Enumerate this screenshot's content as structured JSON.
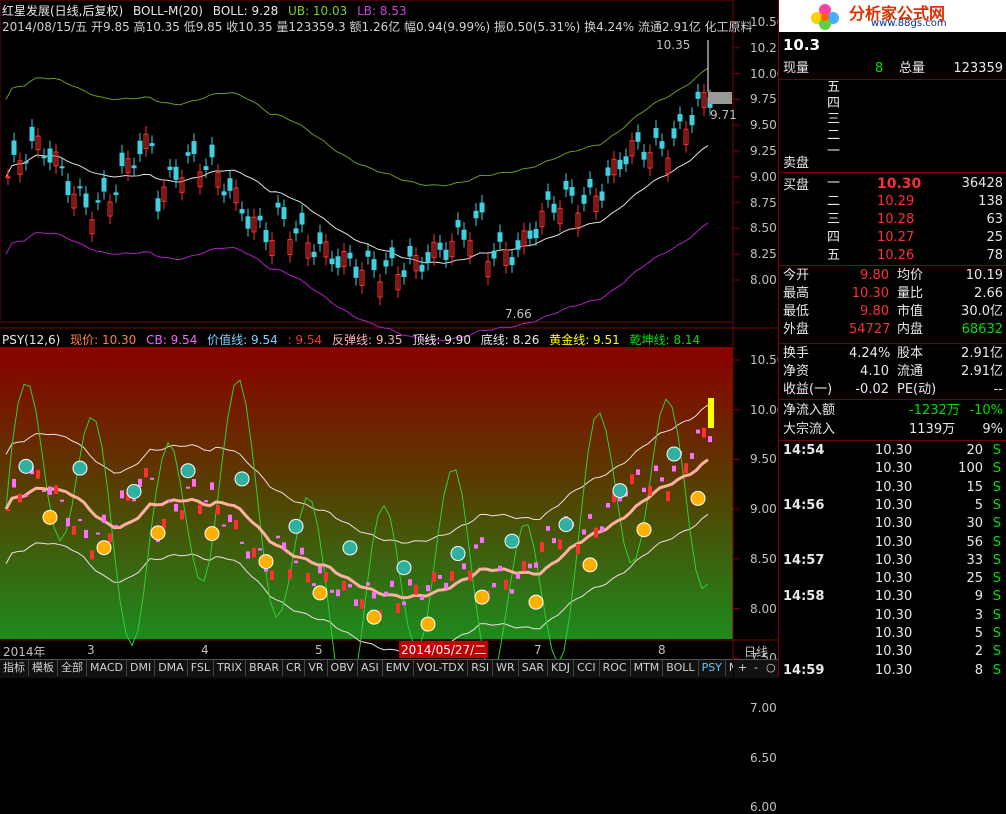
{
  "header": {
    "stock_name": "红星发展(日线,后复权)",
    "indicator": "BOLL-M(20)",
    "boll_label": "BOLL: 9.28",
    "ub_label": "UB: 10.03",
    "lb_label": "LB: 8.53",
    "ohlc_line": "2014/08/15/五 开9.85 高10.35 低9.85 收10.35 量123359.3 额1.26亿 幅0.94(9.99%) 振0.50(5.31%) 换4.24% 流通2.91亿 化工原料",
    "price_high_note": "10.35",
    "price_close_note": "9.71",
    "price_low_note": "7.66"
  },
  "price_axis": [
    "10.50",
    "10.25",
    "10.00",
    "9.75",
    "9.50",
    "9.25",
    "9.00",
    "8.75",
    "8.50",
    "8.25",
    "8.00"
  ],
  "psy_axis": [
    "10.50",
    "10.00",
    "9.50",
    "9.00",
    "8.50",
    "8.00",
    "7.50",
    "7.00",
    "6.50",
    "6.00"
  ],
  "psy_header": {
    "name": "PSY(12,6)",
    "price": "现价: 10.30",
    "cb": "CB: 9.54",
    "value_line": "价值线: 9.54",
    "val2": ": 9.54",
    "rebound": "反弹线: 9.35",
    "top": "顶线: 9.90",
    "bottom": "底线: 8.26",
    "gold": "黄金线: 9.51",
    "qiankun": "乾坤线: 8.14"
  },
  "date_axis": {
    "year": "2014年",
    "m3": "3",
    "m4": "4",
    "m5": "5",
    "selected_date": "2014/05/27/二",
    "m7": "7",
    "m8": "8",
    "period": "日线"
  },
  "bottom_tabs": [
    "指标",
    "模板",
    "全部",
    "MACD",
    "DMI",
    "DMA",
    "FSL",
    "TRIX",
    "BRAR",
    "CR",
    "VR",
    "OBV",
    "ASI",
    "EMV",
    "VOL-TDX",
    "RSI",
    "WR",
    "SAR",
    "KDJ",
    "CCI",
    "ROC",
    "MTM",
    "BOLL",
    "PSY",
    "MCST"
  ],
  "active_tab": "PSY",
  "nav_buttons": [
    "+",
    "-",
    "○"
  ],
  "brand": {
    "title": "分析家公式网",
    "url": "www.88gs.com"
  },
  "quote": {
    "price": "10.3",
    "xianliang_label": "现量",
    "xianliang": "8",
    "zongliang_label": "总量",
    "zongliang": "123359",
    "sell_labels": [
      "五",
      "四",
      "三",
      "二",
      "一"
    ],
    "sell_title": "卖盘",
    "buy_title": "买盘",
    "buy": [
      {
        "lvl": "一",
        "price": "10.30",
        "vol": "36428"
      },
      {
        "lvl": "二",
        "price": "10.29",
        "vol": "138"
      },
      {
        "lvl": "三",
        "price": "10.28",
        "vol": "63"
      },
      {
        "lvl": "四",
        "price": "10.27",
        "vol": "25"
      },
      {
        "lvl": "五",
        "price": "10.26",
        "vol": "78"
      }
    ],
    "stats": [
      {
        "l1": "今开",
        "v1": "9.80",
        "l2": "均价",
        "v2": "10.19"
      },
      {
        "l1": "最高",
        "v1": "10.30",
        "l2": "量比",
        "v2": "2.66"
      },
      {
        "l1": "最低",
        "v1": "9.80",
        "l2": "市值",
        "v2": "30.0亿"
      },
      {
        "l1": "外盘",
        "v1": "54727",
        "l2": "内盘",
        "v2": "68632"
      }
    ],
    "stats2": [
      {
        "l1": "换手",
        "v1": "4.24%",
        "l2": "股本",
        "v2": "2.91亿"
      },
      {
        "l1": "净资",
        "v1": "4.10",
        "l2": "流通",
        "v2": "2.91亿"
      },
      {
        "l1": "收益(一)",
        "v1": "-0.02",
        "l2": "PE(动)",
        "v2": "--"
      }
    ],
    "flow": [
      {
        "label": "净流入额",
        "v1": "-1232万",
        "v2": "-10%"
      },
      {
        "label": "大宗流入",
        "v1": "1139万",
        "v2": "9%"
      }
    ],
    "ticks": [
      {
        "time": "14:54",
        "price": "10.30",
        "vol": "20",
        "side": "S"
      },
      {
        "time": "",
        "price": "10.30",
        "vol": "100",
        "side": "S"
      },
      {
        "time": "",
        "price": "10.30",
        "vol": "15",
        "side": "S"
      },
      {
        "time": "14:56",
        "price": "10.30",
        "vol": "5",
        "side": "S"
      },
      {
        "time": "",
        "price": "10.30",
        "vol": "30",
        "side": "S"
      },
      {
        "time": "",
        "price": "10.30",
        "vol": "56",
        "side": "S"
      },
      {
        "time": "14:57",
        "price": "10.30",
        "vol": "33",
        "side": "S"
      },
      {
        "time": "",
        "price": "10.30",
        "vol": "25",
        "side": "S"
      },
      {
        "time": "14:58",
        "price": "10.30",
        "vol": "9",
        "side": "S"
      },
      {
        "time": "",
        "price": "10.30",
        "vol": "3",
        "side": "S"
      },
      {
        "time": "",
        "price": "10.30",
        "vol": "5",
        "side": "S"
      },
      {
        "time": "",
        "price": "10.30",
        "vol": "2",
        "side": "S"
      },
      {
        "time": "14:59",
        "price": "10.30",
        "vol": "8",
        "side": "S"
      }
    ]
  },
  "colors": {
    "up": "#ff3030",
    "down": "#00e0e0",
    "boll_mid": "#e0e0e0",
    "boll_up": "#6a9a20",
    "boll_low": "#b020c0",
    "psy_top": "#800000",
    "psy_bottom": "#208020"
  }
}
